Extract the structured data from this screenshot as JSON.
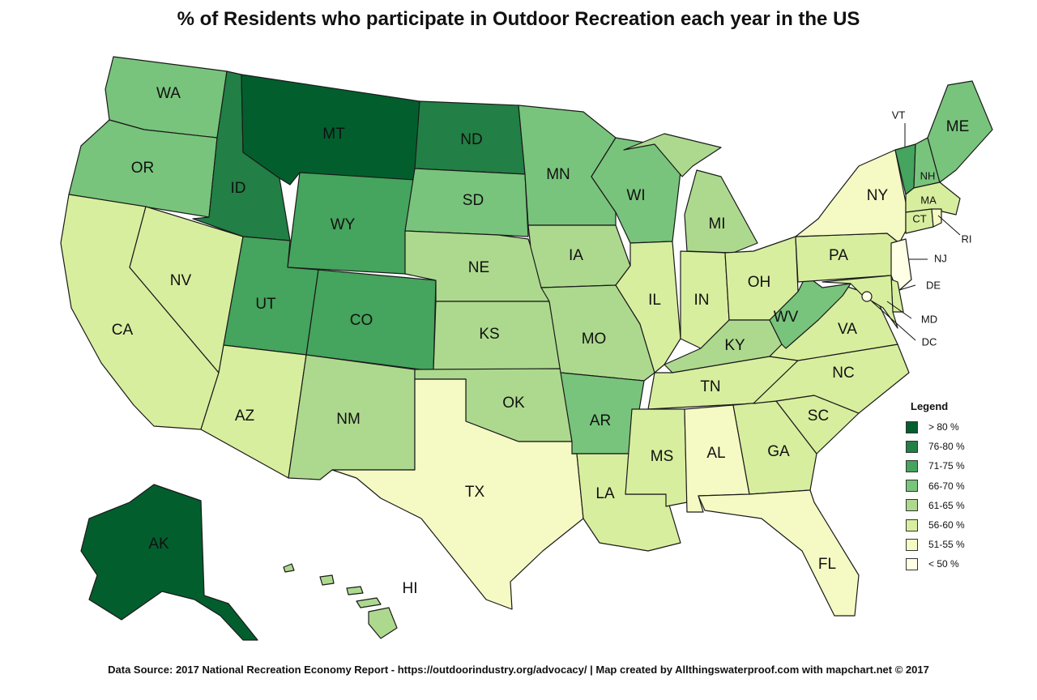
{
  "title": "% of Residents who participate in Outdoor Recreation each year in the US",
  "legend": {
    "title": "Legend",
    "items": [
      {
        "label": "> 80 %",
        "color": "#035e2e"
      },
      {
        "label": "76-80 %",
        "color": "#227f45"
      },
      {
        "label": "71-75 %",
        "color": "#45a45d"
      },
      {
        "label": "66-70 %",
        "color": "#78c47c"
      },
      {
        "label": "61-65 %",
        "color": "#add98e"
      },
      {
        "label": "56-60 %",
        "color": "#d8ee9f"
      },
      {
        "label": "51-55 %",
        "color": "#f5fac4"
      },
      {
        "label": "< 50 %",
        "color": "#ffffe6"
      }
    ]
  },
  "states": [
    {
      "abbr": "WA",
      "bin": 3
    },
    {
      "abbr": "OR",
      "bin": 3
    },
    {
      "abbr": "CA",
      "bin": 5
    },
    {
      "abbr": "ID",
      "bin": 1
    },
    {
      "abbr": "NV",
      "bin": 5
    },
    {
      "abbr": "MT",
      "bin": 0
    },
    {
      "abbr": "WY",
      "bin": 2
    },
    {
      "abbr": "UT",
      "bin": 2
    },
    {
      "abbr": "CO",
      "bin": 2
    },
    {
      "abbr": "AZ",
      "bin": 5
    },
    {
      "abbr": "NM",
      "bin": 4
    },
    {
      "abbr": "ND",
      "bin": 1
    },
    {
      "abbr": "SD",
      "bin": 3
    },
    {
      "abbr": "NE",
      "bin": 4
    },
    {
      "abbr": "KS",
      "bin": 4
    },
    {
      "abbr": "OK",
      "bin": 4
    },
    {
      "abbr": "TX",
      "bin": 6
    },
    {
      "abbr": "MN",
      "bin": 3
    },
    {
      "abbr": "IA",
      "bin": 4
    },
    {
      "abbr": "MO",
      "bin": 4
    },
    {
      "abbr": "AR",
      "bin": 3
    },
    {
      "abbr": "LA",
      "bin": 5
    },
    {
      "abbr": "WI",
      "bin": 3
    },
    {
      "abbr": "MI",
      "bin": 4
    },
    {
      "abbr": "IL",
      "bin": 5
    },
    {
      "abbr": "IN",
      "bin": 5
    },
    {
      "abbr": "OH",
      "bin": 5
    },
    {
      "abbr": "KY",
      "bin": 4
    },
    {
      "abbr": "TN",
      "bin": 5
    },
    {
      "abbr": "MS",
      "bin": 5
    },
    {
      "abbr": "AL",
      "bin": 6
    },
    {
      "abbr": "GA",
      "bin": 5
    },
    {
      "abbr": "FL",
      "bin": 6
    },
    {
      "abbr": "SC",
      "bin": 5
    },
    {
      "abbr": "NC",
      "bin": 5
    },
    {
      "abbr": "VA",
      "bin": 5
    },
    {
      "abbr": "WV",
      "bin": 3
    },
    {
      "abbr": "PA",
      "bin": 5
    },
    {
      "abbr": "NY",
      "bin": 6
    },
    {
      "abbr": "VT",
      "bin": 2
    },
    {
      "abbr": "NH",
      "bin": 3
    },
    {
      "abbr": "ME",
      "bin": 3
    },
    {
      "abbr": "MA",
      "bin": 5
    },
    {
      "abbr": "CT",
      "bin": 5
    },
    {
      "abbr": "RI",
      "bin": 6
    },
    {
      "abbr": "NJ",
      "bin": 7
    },
    {
      "abbr": "DE",
      "bin": 5
    },
    {
      "abbr": "MD",
      "bin": 5
    },
    {
      "abbr": "DC",
      "bin": 7
    },
    {
      "abbr": "AK",
      "bin": 0
    },
    {
      "abbr": "HI",
      "bin": 4
    }
  ],
  "source": "Data Source: 2017 National Recreation Economy Report - https://outdoorindustry.org/advocacy/ | Map created by Allthingswaterproof.com with mapchart.net  © 2017"
}
